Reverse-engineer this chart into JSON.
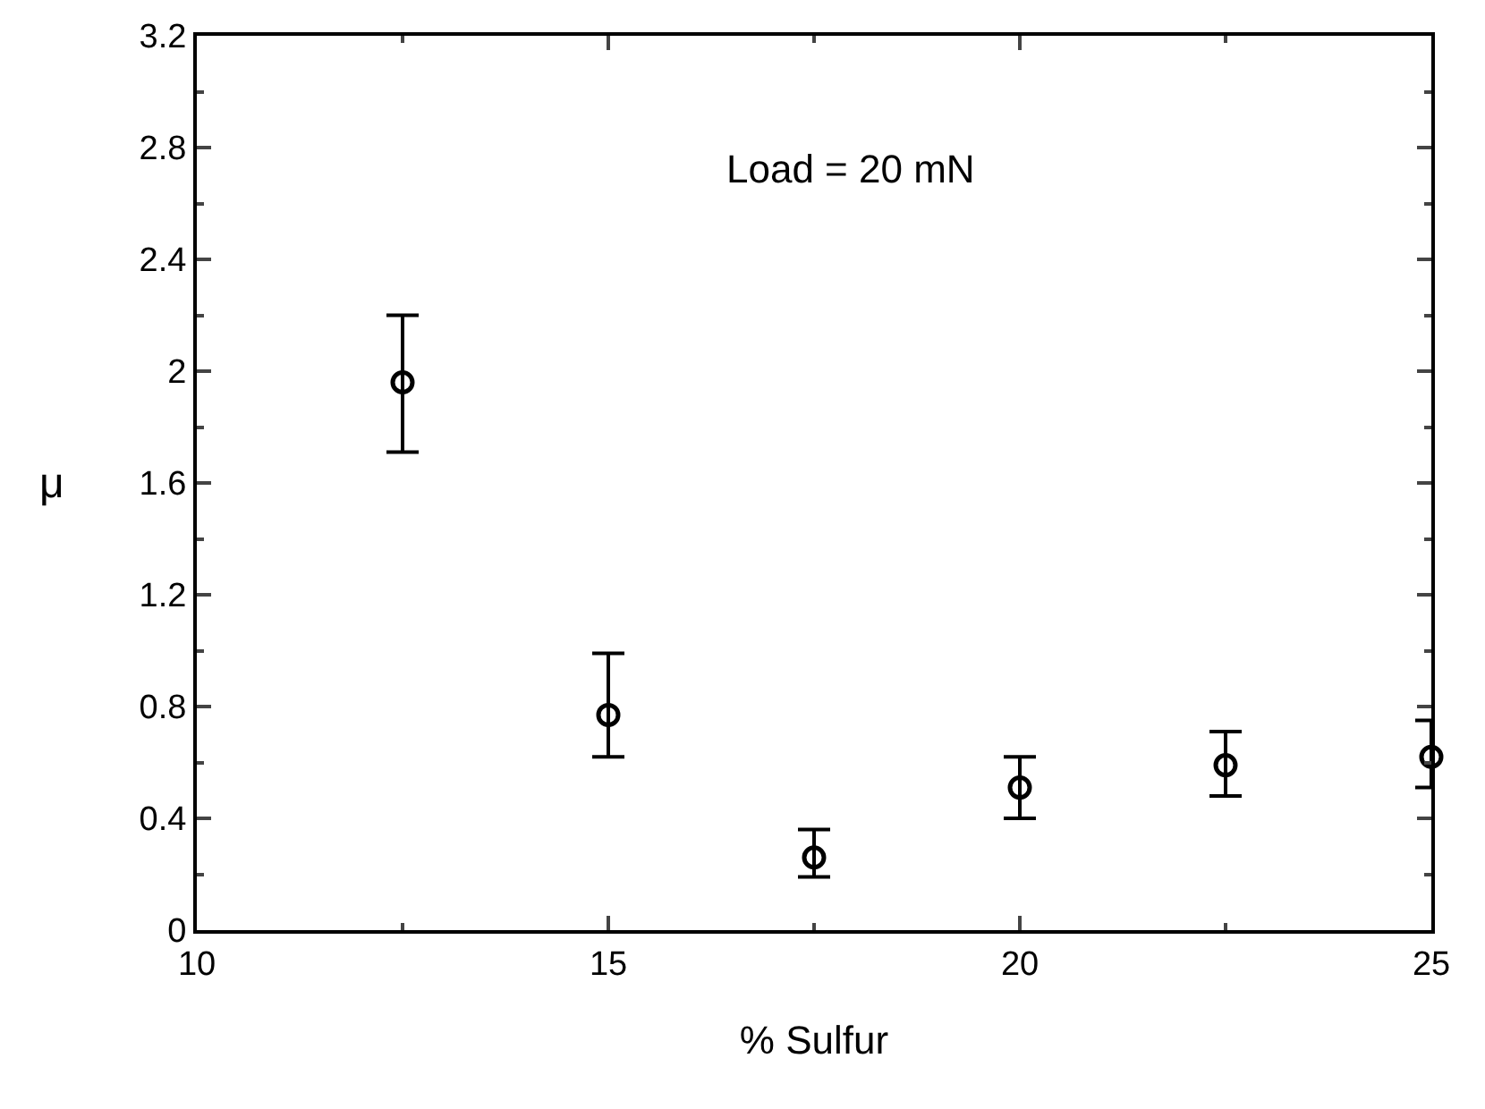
{
  "chart_data": {
    "type": "scatter",
    "xlabel": "% Sulfur",
    "ylabel": "μ",
    "annotations": [
      "Load = 20 mN"
    ],
    "x": [
      12.5,
      15,
      17.5,
      20,
      22.5,
      25
    ],
    "series": [
      {
        "color": "#000000",
        "values": [
          1.96,
          0.77,
          0.26,
          0.51,
          0.59,
          0.62
        ],
        "errors": [
          [
            1.71,
            2.2
          ],
          [
            0.62,
            0.99
          ],
          [
            0.19,
            0.36
          ],
          [
            0.4,
            0.62
          ],
          [
            0.48,
            0.71
          ],
          [
            0.51,
            0.75
          ]
        ]
      }
    ],
    "xlim": [
      10,
      25
    ],
    "xticks": [
      10,
      15,
      20,
      25
    ],
    "ylim": [
      0,
      3.2
    ],
    "yticks": [
      0,
      0.4,
      0.8,
      1.2,
      1.6,
      2,
      2.4,
      2.8,
      3.2
    ],
    "marker": "circle"
  }
}
